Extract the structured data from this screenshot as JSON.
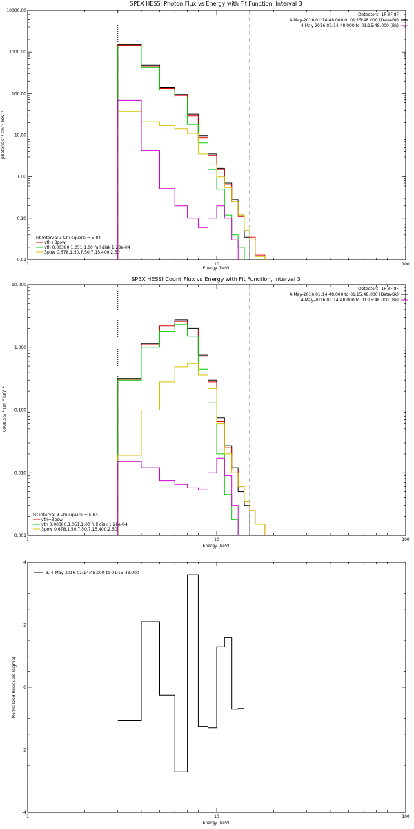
{
  "colors": {
    "data": "#000000",
    "total": "#e00000",
    "vth": "#00cc00",
    "pow": "#d8c000",
    "background": "#cc00cc",
    "axis": "#000000"
  },
  "chart_data": [
    {
      "type": "line",
      "style": "step",
      "title": "SPEX HESSI Photon Flux vs Energy with Fit Function, Interval 3",
      "xlabel": "Energy (keV)",
      "ylabel": "photons s⁻¹ cm⁻² keV⁻¹",
      "xscale": "log",
      "yscale": "log",
      "xlim": [
        1,
        100
      ],
      "ylim": [
        0.01,
        10000
      ],
      "xticks": [
        "1",
        "10",
        "100"
      ],
      "yticks": [
        "0.01",
        "0.10",
        "1.00",
        "10.00",
        "100.00",
        "1000.00",
        "10000.00"
      ],
      "grid": false,
      "header_right": [
        "Detectors: 1F 3F 8F",
        "4-May-2016 01:14:48.000 to 01:15:48.000 (Data-Bk)",
        "4-May-2016 01:14:48.000 to 01:15:48.000 (Bk)"
      ],
      "fit_label": "Fit Interval 3   Chi-square = 5.84",
      "legend_position": "bottom-left",
      "legend": [
        "vth+3pow",
        "vth 0.00380,1.051,1.00  full disk 1.28e-04",
        "3pow 0.678,1.50,7.50,7.15,400,2.50"
      ],
      "vlines": [
        {
          "x": 3.0,
          "style": "dotted"
        },
        {
          "x": 15.0,
          "style": "dashed"
        }
      ],
      "edges": [
        3.0,
        4.0,
        5.0,
        6.0,
        7.0,
        8.0,
        9.0,
        10.0,
        11.0,
        12.0,
        13.0,
        14.0,
        15.0,
        16.0,
        18.0,
        20.0
      ],
      "series": [
        {
          "name": "data",
          "color_key": "data",
          "values": [
            1500,
            480,
            140,
            95,
            32,
            9.5,
            3.5,
            1.6,
            0.7,
            0.28,
            0.12,
            0.035,
            null,
            null,
            null
          ]
        },
        {
          "name": "vth+3pow",
          "color_key": "total",
          "values": [
            1450,
            450,
            130,
            90,
            29,
            8.5,
            3.2,
            1.5,
            0.65,
            0.25,
            0.11,
            0.05,
            0.035,
            0.013,
            null
          ]
        },
        {
          "name": "vth 0.00380,1.051,1.00  full disk 1.28e-04",
          "color_key": "vth",
          "values": [
            1400,
            420,
            120,
            82,
            18,
            6.5,
            1.5,
            0.5,
            0.12,
            0.04,
            0.02,
            null,
            null,
            null,
            null
          ]
        },
        {
          "name": "3pow 0.678,1.50,7.50,7.15,400,2.50",
          "color_key": "pow",
          "values": [
            37,
            21,
            17,
            14,
            11,
            3.5,
            2.0,
            1.0,
            0.55,
            0.25,
            0.12,
            0.05,
            0.03,
            0.012,
            null
          ]
        },
        {
          "name": "bk",
          "color_key": "background",
          "values": [
            68,
            4.3,
            0.52,
            0.2,
            0.1,
            0.06,
            0.1,
            0.2,
            0.1,
            0.03,
            null,
            null,
            null,
            null,
            null
          ]
        }
      ]
    },
    {
      "type": "line",
      "style": "step",
      "title": "SPEX HESSI Count Flux vs Energy with Fit Function, Interval 3",
      "xlabel": "Energy (keV)",
      "ylabel": "counts s⁻¹ cm⁻² keV⁻¹",
      "xscale": "log",
      "yscale": "log",
      "xlim": [
        1,
        100
      ],
      "ylim": [
        0.001,
        10
      ],
      "xticks": [
        "1",
        "10",
        "100"
      ],
      "yticks": [
        "0.001",
        "0.010",
        "0.100",
        "1.000",
        "10.000"
      ],
      "grid": false,
      "header_right": [
        "Detectors: 1F 3F 8F",
        "4-May-2016 01:14:48.000 to 01:15:48.000 (Data-Bk)",
        "4-May-2016 01:14:48.000 to 01:15:48.000 (Bk)"
      ],
      "fit_label": "Fit Interval 3   Chi-square = 5.84",
      "legend_position": "bottom-left",
      "legend": [
        "vth+3pow",
        "vth 0.00380,1.051,1.00  full disk 1.28e-04",
        "3pow 0.678,1.50,7.50,7.15,400,2.50"
      ],
      "vlines": [
        {
          "x": 3.0,
          "style": "dotted"
        },
        {
          "x": 15.0,
          "style": "dashed"
        }
      ],
      "edges": [
        3.0,
        4.0,
        5.0,
        6.0,
        7.0,
        8.0,
        9.0,
        10.0,
        11.0,
        12.0,
        13.0,
        14.0,
        15.0,
        16.0,
        18.0,
        20.0
      ],
      "series": [
        {
          "name": "data",
          "color_key": "data",
          "values": [
            0.32,
            1.15,
            2.1,
            2.75,
            2.0,
            0.75,
            0.3,
            0.075,
            0.027,
            0.012,
            0.005,
            0.003,
            null,
            null,
            null
          ]
        },
        {
          "name": "vth+3pow",
          "color_key": "total",
          "values": [
            0.31,
            1.1,
            2.2,
            2.6,
            1.9,
            0.72,
            0.28,
            0.065,
            0.025,
            0.011,
            0.006,
            0.0035,
            0.0025,
            0.0015,
            null
          ]
        },
        {
          "name": "vth 0.00380,1.051,1.00  full disk 1.28e-04",
          "color_key": "vth",
          "values": [
            0.3,
            1.0,
            1.8,
            2.3,
            1.5,
            0.45,
            0.13,
            0.02,
            0.0045,
            0.0018,
            null,
            null,
            null,
            null,
            null
          ]
        },
        {
          "name": "3pow 0.678,1.50,7.50,7.15,400,2.50",
          "color_key": "pow",
          "values": [
            0.019,
            0.1,
            0.28,
            0.49,
            0.55,
            0.36,
            0.22,
            0.06,
            0.02,
            0.01,
            0.006,
            0.0035,
            0.0025,
            0.0015,
            null
          ]
        },
        {
          "name": "bk",
          "color_key": "background",
          "values": [
            0.015,
            0.012,
            0.0075,
            0.0065,
            0.0057,
            0.0053,
            0.01,
            0.017,
            0.009,
            0.003,
            null,
            null,
            null,
            null,
            null
          ]
        }
      ]
    },
    {
      "type": "line",
      "style": "step",
      "title": "",
      "xlabel": "Energy (keV)",
      "ylabel": "Normalized Residuals (sigma)",
      "xscale": "log",
      "yscale": "linear",
      "xlim": [
        1,
        100
      ],
      "ylim": [
        -4,
        4
      ],
      "xticks": [
        "1",
        "10",
        "100"
      ],
      "yticks": [
        "-4",
        "-2",
        "0",
        "2",
        "4"
      ],
      "grid": false,
      "legend_position": "top-left",
      "legend": [
        "3,  4-May-2016 01:14:48.000 to 01:15:48.000"
      ],
      "vlines": [],
      "edges": [
        3.0,
        4.0,
        5.0,
        6.0,
        7.0,
        8.0,
        9.0,
        10.0,
        11.0,
        12.0,
        13.0,
        14.0,
        15.0
      ],
      "series": [
        {
          "name": "3,  4-May-2016 01:14:48.000 to 01:15:48.000",
          "color_key": "data",
          "values": [
            -1.05,
            2.1,
            -0.25,
            -2.7,
            3.6,
            -1.25,
            -1.3,
            1.3,
            1.6,
            -0.7,
            -0.68,
            null
          ]
        }
      ]
    }
  ]
}
